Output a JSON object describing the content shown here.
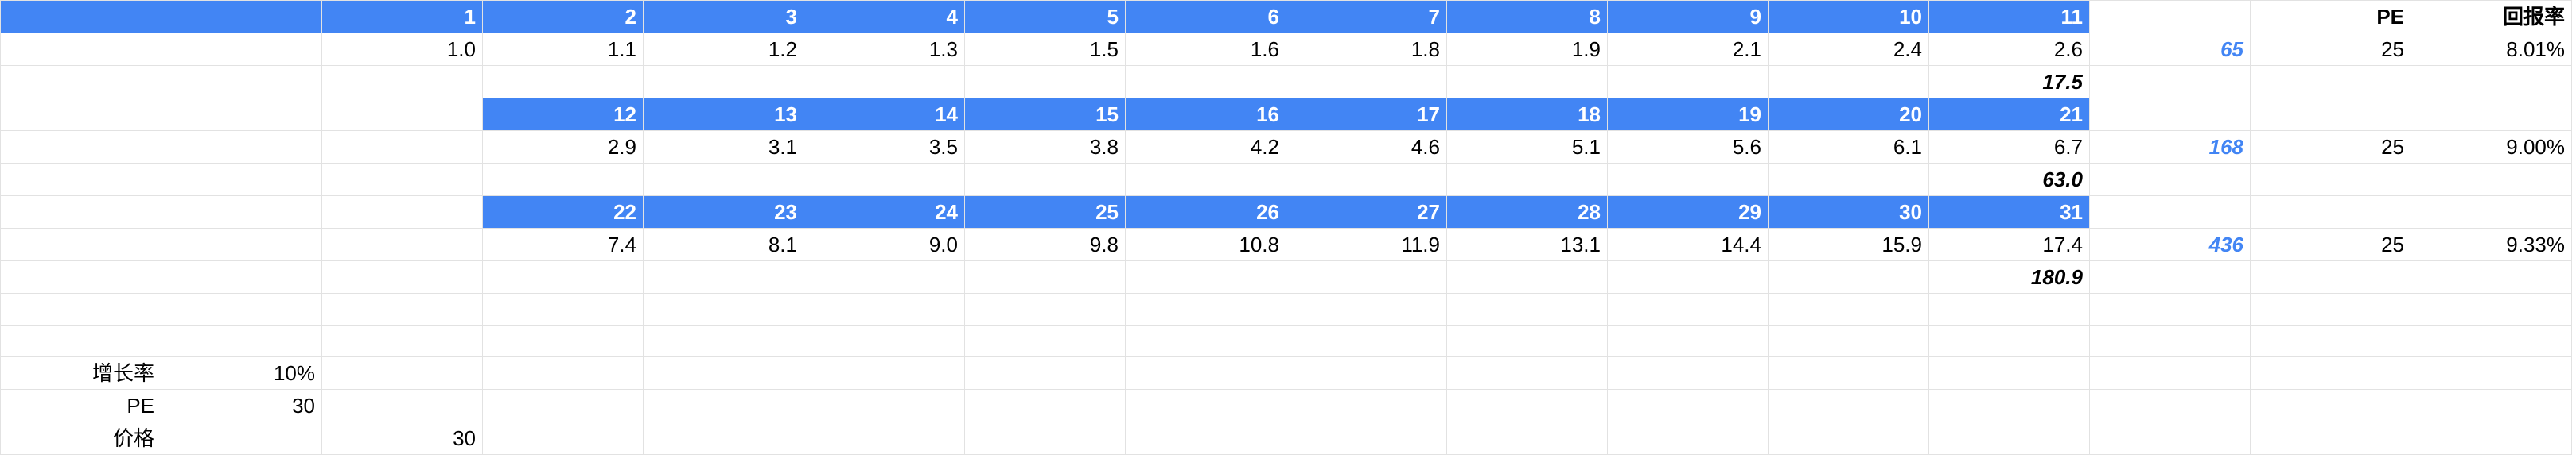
{
  "header_row": {
    "years": [
      "1",
      "2",
      "3",
      "4",
      "5",
      "6",
      "7",
      "8",
      "9",
      "10",
      "11"
    ],
    "pe_label": "PE",
    "return_label": "回报率"
  },
  "block1": {
    "values": [
      "1.0",
      "1.1",
      "1.2",
      "1.3",
      "1.5",
      "1.6",
      "1.8",
      "1.9",
      "2.1",
      "2.4",
      "2.6"
    ],
    "total_value": "65",
    "pe": "25",
    "return_rate": "8.01%",
    "sum": "17.5"
  },
  "block2": {
    "years": [
      "12",
      "13",
      "14",
      "15",
      "16",
      "17",
      "18",
      "19",
      "20",
      "21"
    ],
    "values": [
      "2.9",
      "3.1",
      "3.5",
      "3.8",
      "4.2",
      "4.6",
      "5.1",
      "5.6",
      "6.1",
      "6.7"
    ],
    "total_value": "168",
    "pe": "25",
    "return_rate": "9.00%",
    "sum": "63.0"
  },
  "block3": {
    "years": [
      "22",
      "23",
      "24",
      "25",
      "26",
      "27",
      "28",
      "29",
      "30",
      "31"
    ],
    "values": [
      "7.4",
      "8.1",
      "9.0",
      "9.8",
      "10.8",
      "11.9",
      "13.1",
      "14.4",
      "15.9",
      "17.4"
    ],
    "total_value": "436",
    "pe": "25",
    "return_rate": "9.33%",
    "sum": "180.9"
  },
  "params": {
    "growth_label": "增长率",
    "growth_value": "10%",
    "pe_label": "PE",
    "pe_value": "30",
    "price_label": "价格",
    "price_value": "30"
  },
  "colors": {
    "header_blue": "#4285f4",
    "grid_line": "#e2e2e2"
  }
}
